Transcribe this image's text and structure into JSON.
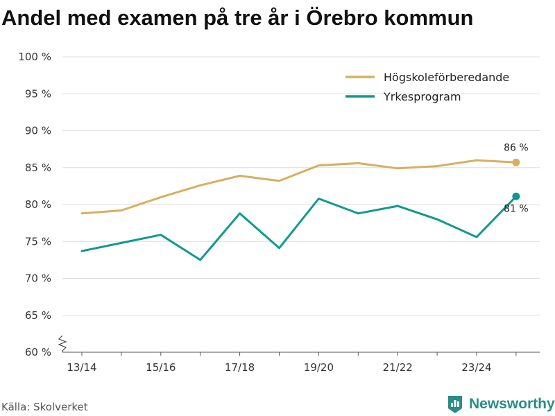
{
  "title": "Andel med examen på tre år i Örebro kommun",
  "source": "Källa: Skolverket",
  "brand": "Newsworthy",
  "colors": {
    "series1": "#d9ae5f",
    "series2": "#11998e",
    "grid": "#dddddd",
    "brand": "#2a8d86"
  },
  "chart_data": {
    "type": "line",
    "title": "Andel med examen på tre år i Örebro kommun",
    "xlabel": "",
    "ylabel": "",
    "x": [
      "13/14",
      "14/15",
      "15/16",
      "16/17",
      "17/18",
      "18/19",
      "19/20",
      "20/21",
      "21/22",
      "22/23",
      "23/24",
      "24/25"
    ],
    "x_tick_labels": [
      "13/14",
      "15/16",
      "17/18",
      "19/20",
      "21/22",
      "23/24"
    ],
    "y_ticks": [
      60,
      65,
      70,
      75,
      80,
      85,
      90,
      95,
      100
    ],
    "y_tick_labels": [
      "60 %",
      "65 %",
      "70 %",
      "75 %",
      "80 %",
      "85 %",
      "90 %",
      "95 %",
      "100 %"
    ],
    "ylim": [
      60,
      100
    ],
    "grid": true,
    "legend_position": "top-right",
    "series": [
      {
        "name": "Högskoleförberedande",
        "color": "#d9ae5f",
        "values": [
          78.8,
          79.2,
          81.0,
          82.6,
          83.9,
          83.2,
          85.3,
          85.6,
          84.9,
          85.2,
          86.0,
          85.7
        ],
        "end_label": "86 %"
      },
      {
        "name": "Yrkesprogram",
        "color": "#11998e",
        "values": [
          73.7,
          74.8,
          75.9,
          72.5,
          78.8,
          74.1,
          80.8,
          78.8,
          79.8,
          78.0,
          75.6,
          81.1
        ],
        "end_label": "81 %"
      }
    ]
  }
}
